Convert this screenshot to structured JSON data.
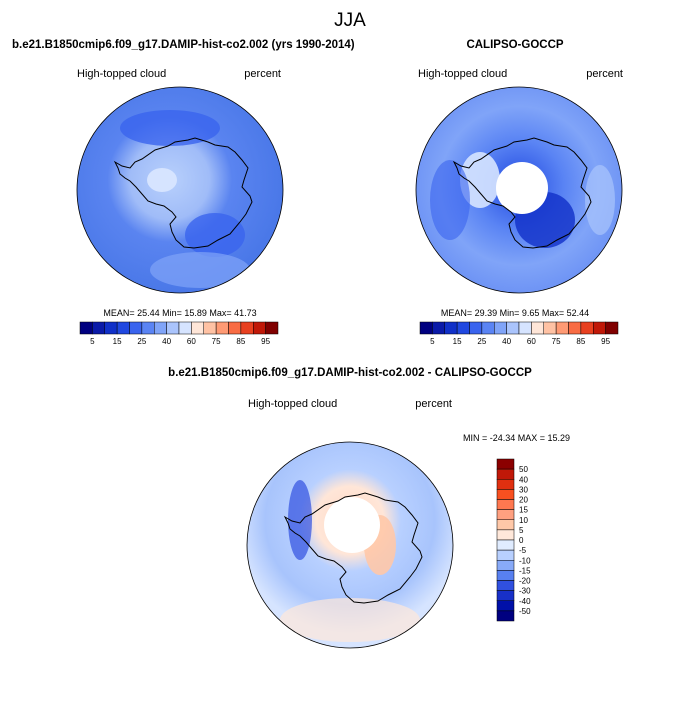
{
  "title": "JJA",
  "panels": [
    {
      "title": "b.e21.B1850cmip6.f09_g17.DAMIP-hist-co2.002 (yrs 1990-2014)",
      "variable": "High-topped cloud",
      "units": "percent",
      "stats": "MEAN= 25.44  Min= 15.89  Max= 41.73",
      "colorbar": {
        "labels": [
          5,
          15,
          25,
          40,
          60,
          75,
          85,
          95
        ],
        "colors": [
          "#000080",
          "#0a1aa8",
          "#1030c8",
          "#2048e0",
          "#3a64ee",
          "#5a84f4",
          "#80a4f8",
          "#aac4fc",
          "#d6e4ff",
          "#ffe6d8",
          "#ffc2a4",
          "#ff9a74",
          "#f86c44",
          "#e84020",
          "#c01808",
          "#800000"
        ]
      }
    },
    {
      "title": "CALIPSO-GOCCP",
      "variable": "High-topped cloud",
      "units": "percent",
      "stats": "MEAN= 29.39  Min=  9.65  Max= 52.44",
      "colorbar": {
        "labels": [
          5,
          15,
          25,
          40,
          60,
          75,
          85,
          95
        ],
        "colors": [
          "#000080",
          "#0a1aa8",
          "#1030c8",
          "#2048e0",
          "#3a64ee",
          "#5a84f4",
          "#80a4f8",
          "#aac4fc",
          "#d6e4ff",
          "#ffe6d8",
          "#ffc2a4",
          "#ff9a74",
          "#f86c44",
          "#e84020",
          "#c01808",
          "#800000"
        ]
      }
    }
  ],
  "difference": {
    "title": "b.e21.B1850cmip6.f09_g17.DAMIP-hist-co2.002 - CALIPSO-GOCCP",
    "variable": "High-topped cloud",
    "units": "percent",
    "stats": "MIN = -24.34 MAX =  15.29",
    "colorbar": {
      "labels": [
        50,
        40,
        30,
        20,
        15,
        10,
        5,
        0,
        -5,
        -10,
        -15,
        -20,
        -30,
        -40,
        -50
      ],
      "colors": [
        "#8b0000",
        "#c01808",
        "#e03010",
        "#f85020",
        "#ff7850",
        "#ffa080",
        "#ffc8a8",
        "#ffe8da",
        "#e0ecff",
        "#b8d0ff",
        "#88aaf8",
        "#5880f0",
        "#3050e0",
        "#1830c8",
        "#0010a8",
        "#000080"
      ]
    }
  }
}
